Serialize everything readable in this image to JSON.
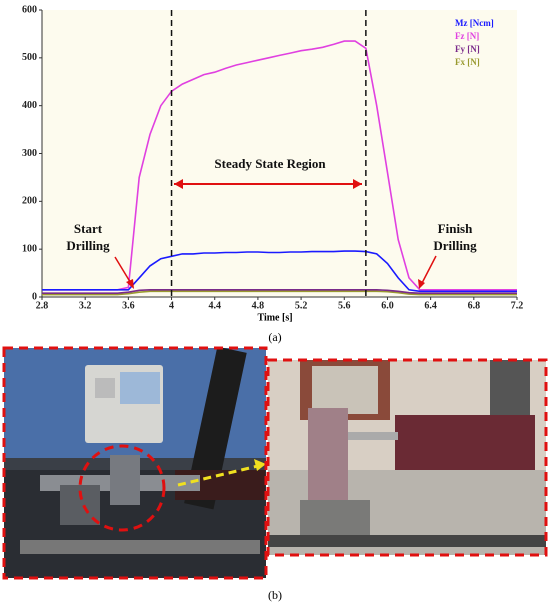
{
  "chart_data": {
    "type": "line",
    "x_label": "Time [s]",
    "x": [
      2.8,
      2.9,
      3.0,
      3.1,
      3.2,
      3.3,
      3.4,
      3.5,
      3.6,
      3.7,
      3.8,
      3.9,
      4.0,
      4.1,
      4.2,
      4.3,
      4.4,
      4.5,
      4.6,
      4.7,
      4.8,
      4.9,
      5.0,
      5.1,
      5.2,
      5.3,
      5.4,
      5.5,
      5.6,
      5.7,
      5.8,
      5.9,
      6.0,
      6.1,
      6.2,
      6.3,
      6.4,
      6.5,
      6.6,
      6.7,
      6.8,
      6.9,
      7.0,
      7.1,
      7.2
    ],
    "series": [
      {
        "name": "Mz [Ncm]",
        "color": "#1a1aff",
        "values": [
          15,
          15,
          15,
          15,
          15,
          15,
          15,
          15,
          15,
          40,
          65,
          80,
          85,
          90,
          90,
          92,
          92,
          93,
          93,
          94,
          94,
          93,
          93,
          94,
          94,
          95,
          95,
          95,
          96,
          96,
          95,
          90,
          70,
          40,
          15,
          12,
          12,
          12,
          12,
          12,
          12,
          12,
          12,
          12,
          12
        ]
      },
      {
        "name": "Fz [N]",
        "color": "#e040e0",
        "values": [
          15,
          15,
          15,
          15,
          15,
          15,
          15,
          15,
          20,
          250,
          340,
          400,
          430,
          445,
          455,
          465,
          470,
          478,
          485,
          490,
          495,
          500,
          505,
          510,
          515,
          518,
          522,
          528,
          535,
          535,
          520,
          400,
          260,
          120,
          40,
          15,
          15,
          15,
          15,
          15,
          15,
          15,
          15,
          15,
          15
        ]
      },
      {
        "name": "Fy [N]",
        "color": "#7a2a8a",
        "values": [
          8,
          8,
          8,
          8,
          8,
          8,
          8,
          8,
          10,
          14,
          15,
          15,
          15,
          15,
          15,
          15,
          15,
          15,
          15,
          15,
          15,
          15,
          15,
          15,
          15,
          15,
          15,
          15,
          15,
          15,
          15,
          15,
          14,
          12,
          9,
          8,
          8,
          8,
          8,
          8,
          8,
          8,
          8,
          8,
          8
        ]
      },
      {
        "name": "Fx [N]",
        "color": "#9a9a30",
        "values": [
          5,
          5,
          5,
          5,
          5,
          5,
          5,
          5,
          7,
          10,
          12,
          12,
          12,
          12,
          12,
          12,
          12,
          12,
          12,
          12,
          12,
          12,
          12,
          12,
          12,
          12,
          12,
          12,
          12,
          12,
          12,
          12,
          11,
          9,
          6,
          5,
          5,
          5,
          5,
          5,
          5,
          5,
          5,
          5,
          5
        ]
      }
    ],
    "xlim": [
      2.8,
      7.2
    ],
    "xticks": [
      2.8,
      3.2,
      3.6,
      4.0,
      {
        "value": 4.0,
        "label": "4.0"
      },
      4.4,
      4.8,
      5.2,
      5.6,
      {
        "value": 6.0,
        "label": "6.0"
      },
      6.4,
      6.8,
      7.2
    ],
    "ylim": [
      0,
      600
    ],
    "yticks": [
      0,
      100,
      200,
      300,
      400,
      500,
      600
    ],
    "vlines": [
      4.0,
      5.8
    ],
    "legend": "upper right",
    "annotations": {
      "steady": "Steady State Region",
      "start": [
        "Start",
        "Drilling"
      ],
      "finish": [
        "Finish",
        "Drilling"
      ]
    }
  },
  "panel_labels": [
    "(a)",
    "(b)"
  ]
}
